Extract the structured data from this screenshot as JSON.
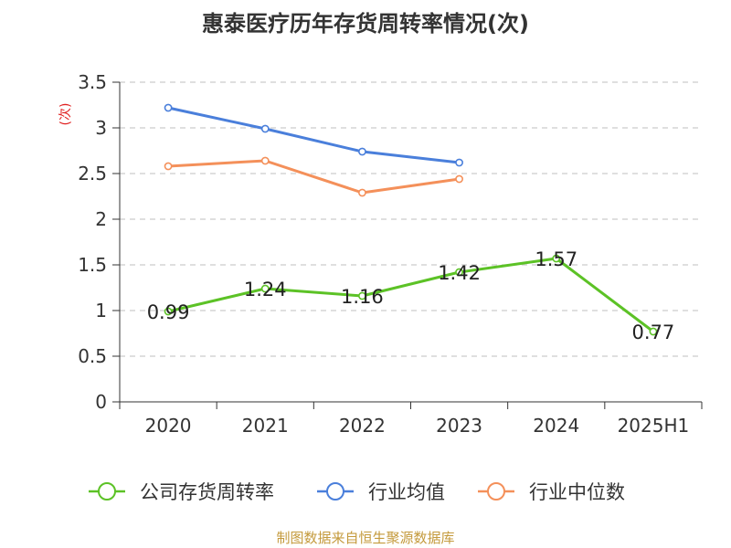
{
  "chart_data": {
    "type": "line",
    "title": "惠泰医疗历年存货周转率情况(次)",
    "ylabel": "(次)",
    "categories": [
      "2020",
      "2021",
      "2022",
      "2023",
      "2024",
      "2025H1"
    ],
    "y_ticks": [
      "0",
      "0.5",
      "1",
      "1.5",
      "2",
      "2.5",
      "3",
      "3.5"
    ],
    "ylim": [
      0,
      3.5
    ],
    "grid": true,
    "legend_position": "bottom",
    "series": [
      {
        "name": "公司存货周转率",
        "color": "#5cc226",
        "values": [
          0.99,
          1.24,
          1.16,
          1.42,
          1.57,
          0.77
        ],
        "labels": [
          "0.99",
          "1.24",
          "1.16",
          "1.42",
          "1.57",
          "0.77"
        ]
      },
      {
        "name": "行业均值",
        "color": "#4a7fdb",
        "values": [
          3.22,
          2.99,
          2.74,
          2.62,
          null,
          null
        ]
      },
      {
        "name": "行业中位数",
        "color": "#f4905a",
        "values": [
          2.58,
          2.64,
          2.29,
          2.44,
          null,
          null
        ]
      }
    ]
  },
  "source": "制图数据来自恒生聚源数据库",
  "colors": {
    "axis": "#333333",
    "grid": "#cccccc",
    "ylabel": "#e02020",
    "source": "#c49a3c"
  }
}
